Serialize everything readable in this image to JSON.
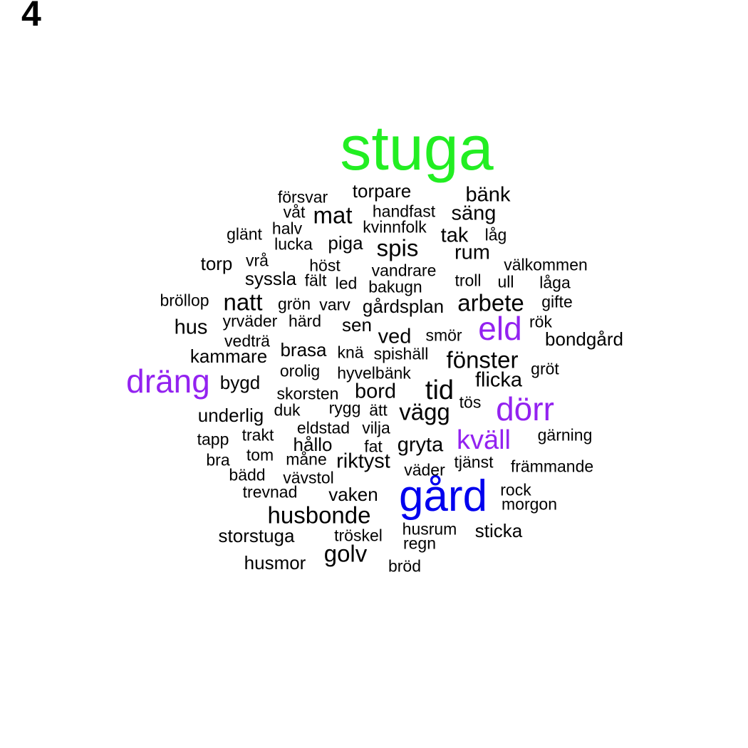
{
  "panel_label": "4",
  "colors": {
    "green": "#22ee22",
    "blue": "#0000ee",
    "purple": "#9322f0",
    "black": "#000000"
  },
  "words": [
    "stuga",
    "gård",
    "dörr",
    "eld",
    "dräng",
    "kväll",
    "tid",
    "husbonde",
    "golv",
    "vägg",
    "fönster",
    "spis",
    "natt",
    "mat",
    "arbete",
    "hus",
    "rum",
    "bänk",
    "säng",
    "tak",
    "bord",
    "gryta",
    "riktyst",
    "flicka",
    "ved",
    "brasa",
    "sticka",
    "bondgård",
    "husmor",
    "storstuga",
    "vaken",
    "kammare",
    "torpare",
    "piga",
    "sen",
    "gårdsplan",
    "underlig",
    "hållo",
    "bygd",
    "torp",
    "syssla",
    "yrväder",
    "främmande",
    "vandrare",
    "välkommen",
    "morgon",
    "gärning",
    "gröt",
    "smör",
    "tjänst",
    "handfast",
    "kvinnfolk",
    "försvar",
    "glänt",
    "halv",
    "lucka",
    "vrå",
    "höst",
    "fält",
    "led",
    "bakugn",
    "troll",
    "ull",
    "låga",
    "bröllop",
    "grön",
    "varv",
    "gifte",
    "härd",
    "rök",
    "vedträ",
    "knä",
    "spishäll",
    "orolig",
    "hyvelbänk",
    "skorsten",
    "rygg",
    "ätt",
    "tös",
    "duk",
    "eldstad",
    "vilja",
    "tapp",
    "trakt",
    "fat",
    "bra",
    "tom",
    "måne",
    "väder",
    "bädd",
    "vävstol",
    "trevnad",
    "rock",
    "husrum",
    "regn",
    "tröskel",
    "bröd",
    "våt",
    "låg"
  ]
}
